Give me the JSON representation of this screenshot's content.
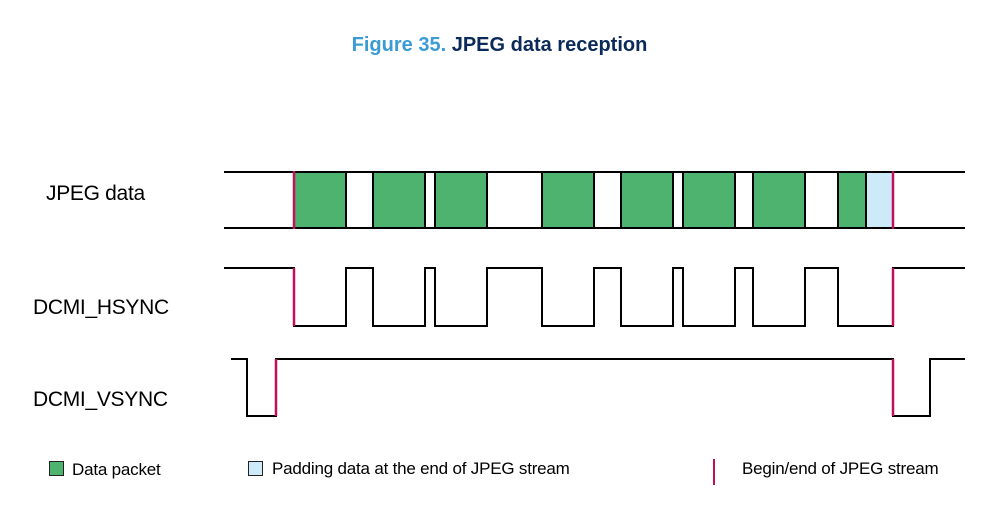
{
  "title": {
    "number": "Figure 35.",
    "text": "JPEG data reception"
  },
  "signals": {
    "jpeg": "JPEG data",
    "hsync": "DCMI_HSYNC",
    "vsync": "DCMI_VSYNC"
  },
  "legend": {
    "data_packet": "Data packet",
    "padding": "Padding data at the end of JPEG stream",
    "begin_end": "Begin/end of JPEG stream"
  },
  "colors": {
    "packet_fill": "#4db36f",
    "padding_fill": "#cdeaf8",
    "marker": "#c0105a",
    "line": "#000000",
    "title_number": "#3a9bd5",
    "title_text": "#0b2a5a"
  }
}
